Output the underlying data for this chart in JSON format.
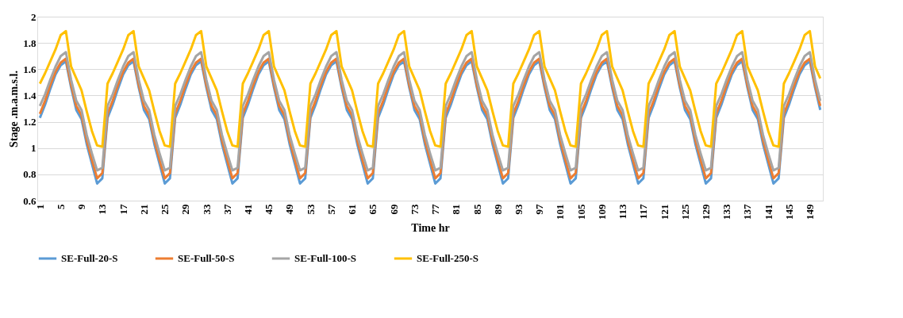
{
  "chart_data": {
    "type": "line",
    "xlabel": "Time hr",
    "ylabel": "Stage .m.a.m.s.l.",
    "ylim": [
      0.6,
      2
    ],
    "yticks": [
      0.6,
      0.8,
      1,
      1.2,
      1.4,
      1.6,
      1.8,
      2
    ],
    "grid": "y",
    "legend": "bottom",
    "marker": "none",
    "line_style": "solid",
    "categories": [
      "1",
      null,
      null,
      null,
      "5",
      null,
      null,
      null,
      "9",
      null,
      null,
      null,
      "13",
      null,
      null,
      null,
      "17",
      null,
      null,
      null,
      "21",
      null,
      null,
      null,
      "25",
      null,
      null,
      null,
      "29",
      null,
      null,
      null,
      "33",
      null,
      null,
      null,
      "37",
      null,
      null,
      null,
      "41",
      null,
      null,
      null,
      "45",
      null,
      null,
      null,
      "49",
      null,
      null,
      null,
      "53",
      null,
      null,
      null,
      "57",
      null,
      null,
      null,
      "61",
      null,
      null,
      null,
      "65",
      null,
      null,
      null,
      "69",
      null,
      null,
      null,
      "73",
      null,
      null,
      null,
      "77",
      null,
      null,
      null,
      "81",
      null,
      null,
      null,
      "85",
      null,
      null,
      null,
      "89",
      null,
      null,
      null,
      "93",
      null,
      null,
      null,
      "97",
      null,
      null,
      null,
      "101",
      null,
      null,
      null,
      "105",
      null,
      null,
      null,
      "109",
      null,
      null,
      null,
      "113",
      null,
      null,
      null,
      "117",
      null,
      null,
      null,
      "121",
      null,
      null,
      null,
      "125",
      null,
      null,
      null,
      "129",
      null,
      null,
      null,
      "133",
      null,
      null,
      null,
      "137",
      null,
      null,
      null,
      "141",
      null,
      null,
      null,
      "145",
      null,
      null,
      null,
      "149",
      null,
      null
    ],
    "series": [
      {
        "name": "SE-Full-20-S",
        "color": "#5b9bd5",
        "values": [
          1.23,
          1.33,
          1.45,
          1.56,
          1.63,
          1.66,
          1.46,
          1.29,
          1.22,
          1.03,
          0.88,
          0.73,
          0.77,
          1.23,
          1.33,
          1.45,
          1.56,
          1.63,
          1.66,
          1.46,
          1.29,
          1.22,
          1.03,
          0.88,
          0.73,
          0.77,
          1.23,
          1.33,
          1.45,
          1.56,
          1.63,
          1.66,
          1.46,
          1.29,
          1.22,
          1.03,
          0.88,
          0.73,
          0.77,
          1.23,
          1.33,
          1.45,
          1.56,
          1.63,
          1.66,
          1.46,
          1.29,
          1.22,
          1.03,
          0.88,
          0.73,
          0.77,
          1.23,
          1.33,
          1.45,
          1.56,
          1.63,
          1.66,
          1.46,
          1.29,
          1.22,
          1.03,
          0.88,
          0.73,
          0.77,
          1.23,
          1.33,
          1.45,
          1.56,
          1.63,
          1.66,
          1.46,
          1.29,
          1.22,
          1.03,
          0.88,
          0.73,
          0.77,
          1.23,
          1.33,
          1.45,
          1.56,
          1.63,
          1.66,
          1.46,
          1.29,
          1.22,
          1.03,
          0.88,
          0.73,
          0.77,
          1.23,
          1.33,
          1.45,
          1.56,
          1.63,
          1.66,
          1.46,
          1.29,
          1.22,
          1.03,
          0.88,
          0.73,
          0.77,
          1.23,
          1.33,
          1.45,
          1.56,
          1.63,
          1.66,
          1.46,
          1.29,
          1.22,
          1.03,
          0.88,
          0.73,
          0.77,
          1.23,
          1.33,
          1.45,
          1.56,
          1.63,
          1.66,
          1.46,
          1.29,
          1.22,
          1.03,
          0.88,
          0.73,
          0.77,
          1.23,
          1.33,
          1.45,
          1.56,
          1.63,
          1.66,
          1.46,
          1.29,
          1.22,
          1.03,
          0.88,
          0.73,
          0.77,
          1.23,
          1.33,
          1.45,
          1.56,
          1.63,
          1.66,
          1.46,
          1.29
        ]
      },
      {
        "name": "SE-Full-50-S",
        "color": "#ed7d31",
        "values": [
          1.26,
          1.36,
          1.48,
          1.58,
          1.65,
          1.68,
          1.48,
          1.32,
          1.25,
          1.06,
          0.91,
          0.77,
          0.81,
          1.26,
          1.36,
          1.48,
          1.58,
          1.65,
          1.68,
          1.48,
          1.32,
          1.25,
          1.06,
          0.91,
          0.77,
          0.81,
          1.26,
          1.36,
          1.48,
          1.58,
          1.65,
          1.68,
          1.48,
          1.32,
          1.25,
          1.06,
          0.91,
          0.77,
          0.81,
          1.26,
          1.36,
          1.48,
          1.58,
          1.65,
          1.68,
          1.48,
          1.32,
          1.25,
          1.06,
          0.91,
          0.77,
          0.81,
          1.26,
          1.36,
          1.48,
          1.58,
          1.65,
          1.68,
          1.48,
          1.32,
          1.25,
          1.06,
          0.91,
          0.77,
          0.81,
          1.26,
          1.36,
          1.48,
          1.58,
          1.65,
          1.68,
          1.48,
          1.32,
          1.25,
          1.06,
          0.91,
          0.77,
          0.81,
          1.26,
          1.36,
          1.48,
          1.58,
          1.65,
          1.68,
          1.48,
          1.32,
          1.25,
          1.06,
          0.91,
          0.77,
          0.81,
          1.26,
          1.36,
          1.48,
          1.58,
          1.65,
          1.68,
          1.48,
          1.32,
          1.25,
          1.06,
          0.91,
          0.77,
          0.81,
          1.26,
          1.36,
          1.48,
          1.58,
          1.65,
          1.68,
          1.48,
          1.32,
          1.25,
          1.06,
          0.91,
          0.77,
          0.81,
          1.26,
          1.36,
          1.48,
          1.58,
          1.65,
          1.68,
          1.48,
          1.32,
          1.25,
          1.06,
          0.91,
          0.77,
          0.81,
          1.26,
          1.36,
          1.48,
          1.58,
          1.65,
          1.68,
          1.48,
          1.32,
          1.25,
          1.06,
          0.91,
          0.77,
          0.81,
          1.26,
          1.36,
          1.48,
          1.58,
          1.65,
          1.68,
          1.48,
          1.32
        ]
      },
      {
        "name": "SE-Full-100-S",
        "color": "#a5a5a5",
        "values": [
          1.32,
          1.41,
          1.52,
          1.62,
          1.7,
          1.73,
          1.52,
          1.36,
          1.29,
          1.1,
          0.96,
          0.83,
          0.85,
          1.32,
          1.41,
          1.52,
          1.62,
          1.7,
          1.73,
          1.52,
          1.36,
          1.29,
          1.1,
          0.96,
          0.83,
          0.85,
          1.32,
          1.41,
          1.52,
          1.62,
          1.7,
          1.73,
          1.52,
          1.36,
          1.29,
          1.1,
          0.96,
          0.83,
          0.85,
          1.32,
          1.41,
          1.52,
          1.62,
          1.7,
          1.73,
          1.52,
          1.36,
          1.29,
          1.1,
          0.96,
          0.83,
          0.85,
          1.32,
          1.41,
          1.52,
          1.62,
          1.7,
          1.73,
          1.52,
          1.36,
          1.29,
          1.1,
          0.96,
          0.83,
          0.85,
          1.32,
          1.41,
          1.52,
          1.62,
          1.7,
          1.73,
          1.52,
          1.36,
          1.29,
          1.1,
          0.96,
          0.83,
          0.85,
          1.32,
          1.41,
          1.52,
          1.62,
          1.7,
          1.73,
          1.52,
          1.36,
          1.29,
          1.1,
          0.96,
          0.83,
          0.85,
          1.32,
          1.41,
          1.52,
          1.62,
          1.7,
          1.73,
          1.52,
          1.36,
          1.29,
          1.1,
          0.96,
          0.83,
          0.85,
          1.32,
          1.41,
          1.52,
          1.62,
          1.7,
          1.73,
          1.52,
          1.36,
          1.29,
          1.1,
          0.96,
          0.83,
          0.85,
          1.32,
          1.41,
          1.52,
          1.62,
          1.7,
          1.73,
          1.52,
          1.36,
          1.29,
          1.1,
          0.96,
          0.83,
          0.85,
          1.32,
          1.41,
          1.52,
          1.62,
          1.7,
          1.73,
          1.52,
          1.36,
          1.29,
          1.1,
          0.96,
          0.83,
          0.85,
          1.32,
          1.41,
          1.52,
          1.62,
          1.7,
          1.73,
          1.52,
          1.36
        ]
      },
      {
        "name": "SE-Full-250-S",
        "color": "#ffc000",
        "values": [
          1.49,
          1.57,
          1.66,
          1.75,
          1.86,
          1.89,
          1.62,
          1.53,
          1.44,
          1.28,
          1.13,
          1.02,
          1.01,
          1.49,
          1.57,
          1.66,
          1.75,
          1.86,
          1.89,
          1.62,
          1.53,
          1.44,
          1.28,
          1.13,
          1.02,
          1.01,
          1.49,
          1.57,
          1.66,
          1.75,
          1.86,
          1.89,
          1.62,
          1.53,
          1.44,
          1.28,
          1.13,
          1.02,
          1.01,
          1.49,
          1.57,
          1.66,
          1.75,
          1.86,
          1.89,
          1.62,
          1.53,
          1.44,
          1.28,
          1.13,
          1.02,
          1.01,
          1.49,
          1.57,
          1.66,
          1.75,
          1.86,
          1.89,
          1.62,
          1.53,
          1.44,
          1.28,
          1.13,
          1.02,
          1.01,
          1.49,
          1.57,
          1.66,
          1.75,
          1.86,
          1.89,
          1.62,
          1.53,
          1.44,
          1.28,
          1.13,
          1.02,
          1.01,
          1.49,
          1.57,
          1.66,
          1.75,
          1.86,
          1.89,
          1.62,
          1.53,
          1.44,
          1.28,
          1.13,
          1.02,
          1.01,
          1.49,
          1.57,
          1.66,
          1.75,
          1.86,
          1.89,
          1.62,
          1.53,
          1.44,
          1.28,
          1.13,
          1.02,
          1.01,
          1.49,
          1.57,
          1.66,
          1.75,
          1.86,
          1.89,
          1.62,
          1.53,
          1.44,
          1.28,
          1.13,
          1.02,
          1.01,
          1.49,
          1.57,
          1.66,
          1.75,
          1.86,
          1.89,
          1.62,
          1.53,
          1.44,
          1.28,
          1.13,
          1.02,
          1.01,
          1.49,
          1.57,
          1.66,
          1.75,
          1.86,
          1.89,
          1.62,
          1.53,
          1.44,
          1.28,
          1.13,
          1.02,
          1.01,
          1.49,
          1.57,
          1.66,
          1.75,
          1.86,
          1.89,
          1.62,
          1.53
        ]
      }
    ]
  }
}
